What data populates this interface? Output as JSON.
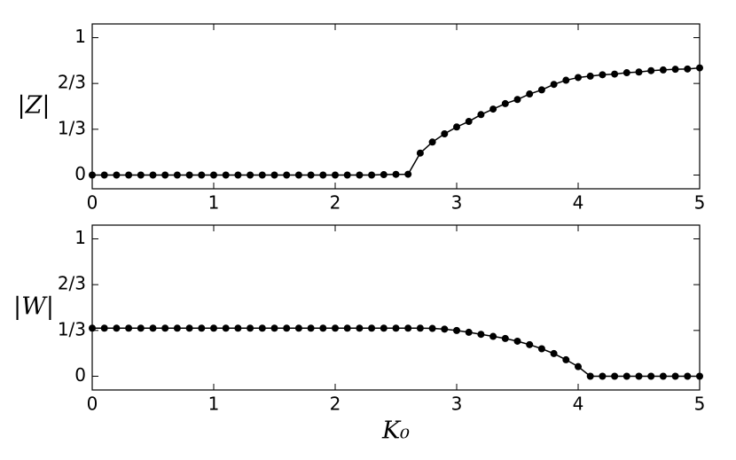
{
  "chart_data": [
    {
      "type": "line",
      "ylabel": "|Z|",
      "marker": "o",
      "x": [
        0,
        0.1,
        0.2,
        0.3,
        0.4,
        0.5,
        0.6,
        0.7,
        0.8,
        0.9,
        1,
        1.1,
        1.2,
        1.3,
        1.4,
        1.5,
        1.6,
        1.7,
        1.8,
        1.9,
        2,
        2.1,
        2.2,
        2.3,
        2.4,
        2.5,
        2.6,
        2.7,
        2.8,
        2.9,
        3,
        3.1,
        3.2,
        3.3,
        3.4,
        3.5,
        3.6,
        3.7,
        3.8,
        3.9,
        4,
        4.1,
        4.2,
        4.3,
        4.4,
        4.5,
        4.6,
        4.7,
        4.8,
        4.9,
        5
      ],
      "series": [
        {
          "color": "#000000",
          "values": [
            0,
            0,
            0,
            0,
            0,
            0,
            0,
            0,
            0,
            0,
            0,
            0,
            0,
            0,
            0,
            0,
            0,
            0,
            0,
            0,
            0,
            0,
            0,
            0,
            0.003,
            0.005,
            0.006,
            0.16,
            0.24,
            0.3,
            0.35,
            0.39,
            0.44,
            0.48,
            0.52,
            0.55,
            0.59,
            0.62,
            0.66,
            0.69,
            0.71,
            0.72,
            0.73,
            0.735,
            0.745,
            0.75,
            0.76,
            0.765,
            0.77,
            0.772,
            0.78
          ]
        }
      ],
      "xlim": [
        0,
        5
      ],
      "xticks": [
        0,
        1,
        2,
        3,
        4,
        5
      ],
      "ylim": [
        -0.1,
        1.1
      ],
      "yticks": [
        0,
        {
          "value": 0.3333,
          "label": "1/3"
        },
        {
          "value": 0.6667,
          "label": "2/3"
        },
        1
      ]
    },
    {
      "type": "line",
      "ylabel": "|W|",
      "xlabel": "K₀",
      "marker": "o",
      "x": [
        0,
        0.1,
        0.2,
        0.3,
        0.4,
        0.5,
        0.6,
        0.7,
        0.8,
        0.9,
        1,
        1.1,
        1.2,
        1.3,
        1.4,
        1.5,
        1.6,
        1.7,
        1.8,
        1.9,
        2,
        2.1,
        2.2,
        2.3,
        2.4,
        2.5,
        2.6,
        2.7,
        2.8,
        2.9,
        3,
        3.1,
        3.2,
        3.3,
        3.4,
        3.5,
        3.6,
        3.7,
        3.8,
        3.9,
        4,
        4.1,
        4.2,
        4.3,
        4.4,
        4.5,
        4.6,
        4.7,
        4.8,
        4.9,
        5
      ],
      "series": [
        {
          "color": "#000000",
          "values": [
            0.35,
            0.35,
            0.35,
            0.35,
            0.35,
            0.35,
            0.35,
            0.35,
            0.35,
            0.35,
            0.35,
            0.35,
            0.35,
            0.35,
            0.35,
            0.35,
            0.35,
            0.35,
            0.35,
            0.35,
            0.35,
            0.35,
            0.35,
            0.35,
            0.35,
            0.35,
            0.35,
            0.35,
            0.348,
            0.343,
            0.333,
            0.32,
            0.305,
            0.29,
            0.275,
            0.255,
            0.23,
            0.2,
            0.165,
            0.12,
            0.07,
            0,
            0,
            0,
            0,
            0,
            0,
            0,
            0,
            0,
            0
          ]
        }
      ],
      "xlim": [
        0,
        5
      ],
      "xticks": [
        0,
        1,
        2,
        3,
        4,
        5
      ],
      "ylim": [
        -0.1,
        1.1
      ],
      "yticks": [
        0,
        {
          "value": 0.3333,
          "label": "1/3"
        },
        {
          "value": 0.6667,
          "label": "2/3"
        },
        1
      ]
    }
  ]
}
